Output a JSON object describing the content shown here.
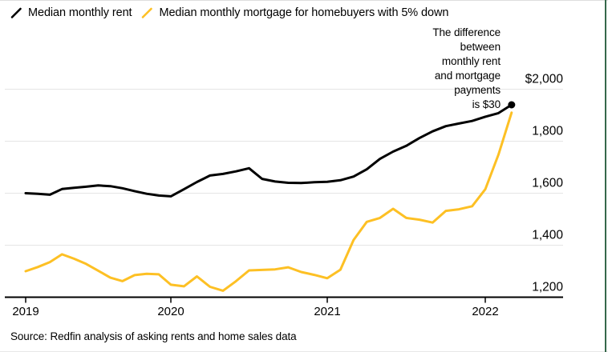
{
  "legend": {
    "rent_label": "Median monthly rent",
    "mortgage_label": "Median monthly mortgage for homebuyers with 5% down"
  },
  "annotation": {
    "text": "The difference\nbetween\nmonthly rent\nand mortgage\npayments\nis $30"
  },
  "source": {
    "text": "Source: Redfin analysis of asking rents and home sales data"
  },
  "colors": {
    "rent": "#000000",
    "mortgage": "#fdc024",
    "grid": "#e4e4e4",
    "axis": "#000000",
    "text": "#000000",
    "page_border_green": "#35684a"
  },
  "chart_data": {
    "type": "line",
    "title": "",
    "xlabel": "",
    "ylabel": "",
    "x": [
      "Jan 2019",
      "Feb 2019",
      "Mar 2019",
      "Apr 2019",
      "May 2019",
      "Jun 2019",
      "Jul 2019",
      "Aug 2019",
      "Sep 2019",
      "Oct 2019",
      "Nov 2019",
      "Dec 2019",
      "Jan 2020",
      "Feb 2020",
      "Mar 2020",
      "Apr 2020",
      "May 2020",
      "Jun 2020",
      "Jul 2020",
      "Aug 2020",
      "Sep 2020",
      "Oct 2020",
      "Nov 2020",
      "Dec 2020",
      "Jan 2021",
      "Feb 2021",
      "Mar 2021",
      "Apr 2021",
      "May 2021",
      "Jun 2021",
      "Jul 2021",
      "Aug 2021",
      "Sep 2021",
      "Oct 2021",
      "Nov 2021",
      "Dec 2021",
      "Jan 2022",
      "Feb 2022",
      "Mar 2022"
    ],
    "series": [
      {
        "name": "Median monthly rent",
        "color": "#000000",
        "end_dot": true,
        "values": [
          1600,
          1598,
          1594,
          1616,
          1621,
          1625,
          1630,
          1627,
          1619,
          1608,
          1598,
          1591,
          1588,
          1615,
          1643,
          1668,
          1674,
          1684,
          1696,
          1655,
          1645,
          1640,
          1639,
          1642,
          1644,
          1650,
          1664,
          1692,
          1732,
          1760,
          1782,
          1812,
          1838,
          1858,
          1868,
          1878,
          1894,
          1908,
          1940
        ]
      },
      {
        "name": "Median monthly mortgage for homebuyers with 5% down",
        "color": "#fdc024",
        "end_dot": false,
        "values": [
          1300,
          1316,
          1335,
          1365,
          1348,
          1328,
          1302,
          1275,
          1262,
          1285,
          1290,
          1288,
          1248,
          1242,
          1280,
          1240,
          1225,
          1262,
          1303,
          1305,
          1307,
          1315,
          1297,
          1286,
          1273,
          1306,
          1420,
          1490,
          1505,
          1540,
          1505,
          1498,
          1487,
          1532,
          1538,
          1550,
          1615,
          1748,
          1910
        ]
      }
    ],
    "y_ticks": [
      {
        "label": "$2,000",
        "value": 2000
      },
      {
        "label": "1,800",
        "value": 1800
      },
      {
        "label": "1,600",
        "value": 1600
      },
      {
        "label": "1,400",
        "value": 1400
      },
      {
        "label": "1,200",
        "value": 1200
      }
    ],
    "x_ticks": [
      "2019",
      "2020",
      "2021",
      "2022"
    ],
    "ylim": [
      1200,
      2020
    ],
    "grid": "horizontal",
    "legend_position": "top-left",
    "annotation": "The difference between monthly rent and mortgage payments is $30",
    "end_values": {
      "rent": 1940,
      "mortgage": 1910,
      "difference": 30
    }
  }
}
